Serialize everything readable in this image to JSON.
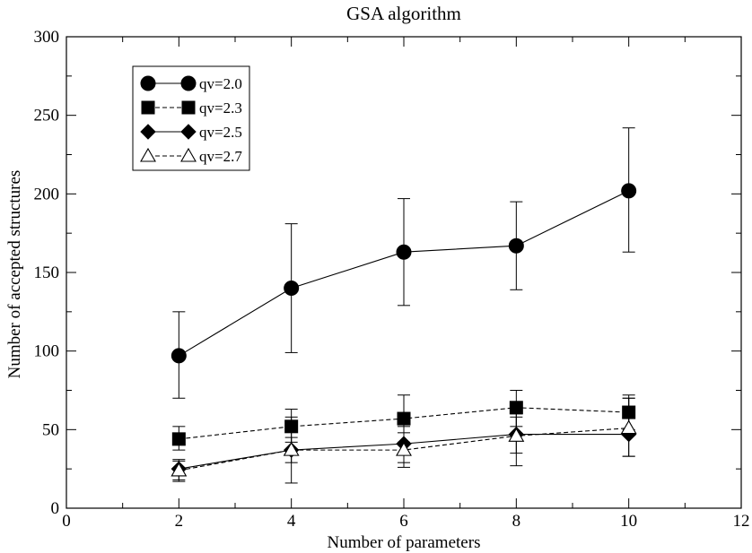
{
  "chart_data": {
    "type": "line",
    "title": "GSA algorithm",
    "xlabel": "Number of parameters",
    "ylabel": "Number of accepted structures",
    "xlim": [
      0,
      12
    ],
    "ylim": [
      0,
      300
    ],
    "xticks": [
      0,
      2,
      4,
      6,
      8,
      10,
      12
    ],
    "yticks": [
      0,
      50,
      100,
      150,
      200,
      250,
      300
    ],
    "grid": false,
    "legend_position": "top-left",
    "x": [
      2,
      4,
      6,
      8,
      10
    ],
    "series": [
      {
        "name": "qv=2.0",
        "marker": "filled-circle",
        "line": "solid",
        "values": [
          97,
          140,
          163,
          167,
          202
        ],
        "err_low": [
          70,
          99,
          129,
          139,
          163
        ],
        "err_high": [
          125,
          181,
          197,
          195,
          242
        ]
      },
      {
        "name": "qv=2.3",
        "marker": "filled-square",
        "line": "dashed",
        "values": [
          44,
          52,
          57,
          64,
          61
        ],
        "err_low": [
          37,
          42,
          42,
          52,
          50
        ],
        "err_high": [
          52,
          63,
          72,
          75,
          72
        ]
      },
      {
        "name": "qv=2.5",
        "marker": "filled-diamond",
        "line": "solid",
        "values": [
          25,
          37,
          41,
          47,
          47
        ],
        "err_low": [
          18,
          16,
          29,
          35,
          33
        ],
        "err_high": [
          30,
          58,
          52,
          58,
          70
        ]
      },
      {
        "name": "qv=2.7",
        "marker": "open-triangle",
        "line": "dashed",
        "values": [
          24,
          37,
          37,
          46,
          51
        ],
        "err_low": [
          17,
          29,
          26,
          27,
          33
        ],
        "err_high": [
          31,
          45,
          48,
          60,
          70
        ]
      }
    ],
    "colors": {
      "line": "#000000",
      "background": "#ffffff"
    }
  }
}
